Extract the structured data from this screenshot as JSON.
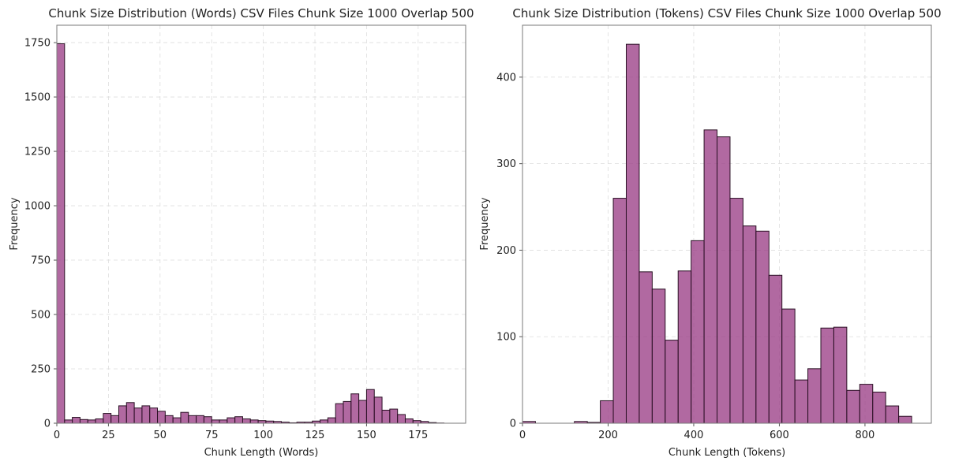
{
  "figure": {
    "bar_color": "#9b3f86",
    "edge_color": "#2a1024"
  },
  "chart_data": [
    {
      "type": "bar",
      "title": "Chunk Size Distribution (Words) CSV Files Chunk Size 1000 Overlap 500",
      "xlabel": "Chunk Length (Words)",
      "ylabel": "Frequency",
      "xlim": [
        0,
        198
      ],
      "ylim": [
        0,
        1830
      ],
      "grid": true,
      "xticks": [
        0,
        25,
        50,
        75,
        100,
        125,
        150,
        175
      ],
      "yticks": [
        0,
        250,
        500,
        750,
        1000,
        1250,
        1500,
        1750
      ],
      "bin_start": 0,
      "bin_width": 3.75,
      "values": [
        1745,
        15,
        27,
        17,
        15,
        20,
        45,
        35,
        80,
        95,
        70,
        80,
        70,
        55,
        35,
        25,
        50,
        35,
        35,
        30,
        15,
        15,
        25,
        30,
        20,
        15,
        12,
        10,
        8,
        5,
        2,
        5,
        5,
        10,
        15,
        25,
        90,
        100,
        135,
        105,
        155,
        120,
        60,
        65,
        40,
        20,
        12,
        8,
        3,
        1
      ]
    },
    {
      "type": "bar",
      "title": "Chunk Size Distribution (Tokens) CSV Files Chunk Size 1000 Overlap 500",
      "xlabel": "Chunk Length (Tokens)",
      "ylabel": "Frequency",
      "xlim": [
        0,
        955
      ],
      "ylim": [
        0,
        460
      ],
      "grid": true,
      "xticks": [
        0,
        200,
        400,
        600,
        800
      ],
      "yticks": [
        0,
        100,
        200,
        300,
        400
      ],
      "bin_start": 0,
      "bin_width": 30.3,
      "values": [
        2,
        0,
        0,
        0,
        2,
        1,
        26,
        260,
        438,
        175,
        155,
        96,
        176,
        211,
        339,
        331,
        260,
        228,
        222,
        171,
        132,
        50,
        63,
        110,
        111,
        38,
        45,
        36,
        20,
        8
      ]
    }
  ]
}
